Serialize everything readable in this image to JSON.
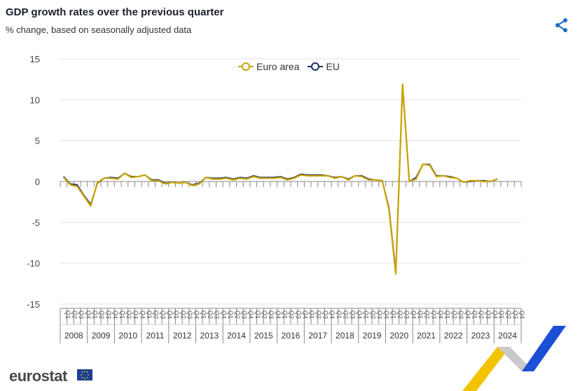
{
  "header": {
    "title": "GDP growth rates over the previous quarter",
    "subtitle": "% change, based on seasonally adjusted data"
  },
  "icons": {
    "share": "share-icon",
    "flag": "eu-flag-icon"
  },
  "footer": {
    "logo": "eurostat"
  },
  "colors": {
    "euro_area": "#c9a300",
    "eu": "#1b2f6b",
    "grid": "#e4e4e4",
    "axis": "#888888"
  },
  "chart_data": {
    "type": "line",
    "title": "GDP growth rates over the previous quarter",
    "subtitle": "% change, based on seasonally adjusted data",
    "ylim": [
      -15,
      15
    ],
    "yticks": [
      15,
      10,
      5,
      0,
      -5,
      -10,
      -15
    ],
    "grid": true,
    "legend_position": "top-center",
    "quarter_labels": [
      "Q1",
      "Q2",
      "Q3",
      "Q4"
    ],
    "years": [
      "2008",
      "2009",
      "2010",
      "2011",
      "2012",
      "2013",
      "2014",
      "2015",
      "2016",
      "2017",
      "2018",
      "2019",
      "2020",
      "2021",
      "2022",
      "2023",
      "2024"
    ],
    "series": [
      {
        "name": "Euro area",
        "color": "#c9a300",
        "values": [
          0.5,
          -0.4,
          -0.6,
          -1.8,
          -3.0,
          -0.1,
          0.4,
          0.4,
          0.3,
          1.0,
          0.5,
          0.6,
          0.8,
          0.1,
          0.1,
          -0.3,
          -0.1,
          -0.2,
          -0.1,
          -0.5,
          -0.3,
          0.5,
          0.3,
          0.3,
          0.4,
          0.2,
          0.4,
          0.3,
          0.6,
          0.4,
          0.4,
          0.4,
          0.5,
          0.2,
          0.4,
          0.8,
          0.7,
          0.7,
          0.7,
          0.7,
          0.4,
          0.6,
          0.2,
          0.7,
          0.6,
          0.2,
          0.2,
          0.1,
          -3.4,
          -11.3,
          11.9,
          0.0,
          0.3,
          2.1,
          2.0,
          0.6,
          0.7,
          0.5,
          0.4,
          -0.1,
          0.1,
          0.1,
          0.0,
          0.0,
          0.3
        ]
      },
      {
        "name": "EU",
        "color": "#1b2f6b",
        "values": [
          0.6,
          -0.3,
          -0.4,
          -1.7,
          -2.8,
          -0.2,
          0.4,
          0.5,
          0.4,
          1.0,
          0.6,
          0.6,
          0.8,
          0.2,
          0.2,
          -0.2,
          -0.1,
          -0.2,
          -0.1,
          -0.4,
          -0.2,
          0.5,
          0.4,
          0.4,
          0.5,
          0.3,
          0.5,
          0.4,
          0.7,
          0.5,
          0.5,
          0.5,
          0.6,
          0.3,
          0.5,
          0.9,
          0.8,
          0.8,
          0.8,
          0.7,
          0.5,
          0.6,
          0.3,
          0.7,
          0.7,
          0.3,
          0.2,
          0.1,
          -3.2,
          -11.0,
          11.7,
          0.0,
          0.5,
          2.1,
          2.1,
          0.7,
          0.7,
          0.6,
          0.4,
          -0.1,
          0.0,
          0.1,
          0.1,
          0.0,
          0.3
        ]
      }
    ]
  }
}
